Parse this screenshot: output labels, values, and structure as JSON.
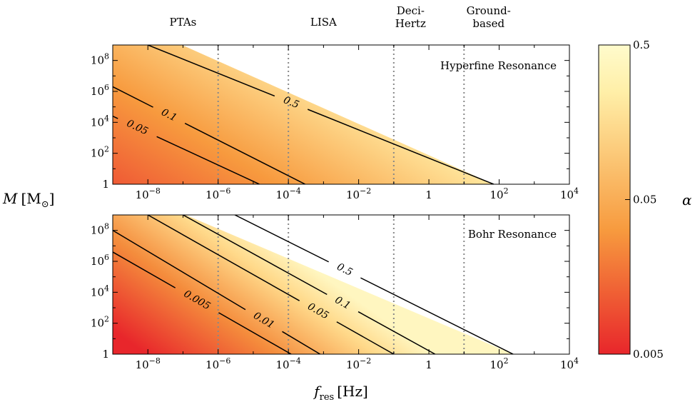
{
  "chart_data": {
    "type": "contour",
    "bands": [
      {
        "label": [
          "PTAs"
        ],
        "x": 1e-07
      },
      {
        "label": [
          "LISA"
        ],
        "x": 0.001
      },
      {
        "label": [
          "Deci-",
          "Hertz"
        ],
        "x": 0.3
      },
      {
        "label": [
          "Ground-",
          "based"
        ],
        "x": 50
      }
    ],
    "band_edges": [
      1e-06,
      0.0001,
      0.1,
      10
    ],
    "xlabel": "f",
    "xlabel_sub": "res",
    "xlabel_unit": "[Hz]",
    "ylabel": "M",
    "ylabel_unit": "[M",
    "ylabel_unit_sub": "⊙",
    "ylabel_unit_close": "]",
    "xlim": [
      1e-09,
      10000
    ],
    "ylim": [
      1,
      1000000000
    ],
    "x_ticks": [
      {
        "value": 1e-08,
        "base": "10",
        "exp": "−8"
      },
      {
        "value": 1e-06,
        "base": "10",
        "exp": "−6"
      },
      {
        "value": 0.0001,
        "base": "10",
        "exp": "−4"
      },
      {
        "value": 0.01,
        "base": "10",
        "exp": "−2"
      },
      {
        "value": 1,
        "base": "1",
        "exp": ""
      },
      {
        "value": 100,
        "base": "10",
        "exp": "2"
      },
      {
        "value": 10000,
        "base": "10",
        "exp": "4"
      }
    ],
    "y_ticks": [
      {
        "value": 1,
        "base": "1",
        "exp": ""
      },
      {
        "value": 100,
        "base": "10",
        "exp": "2"
      },
      {
        "value": 10000,
        "base": "10",
        "exp": "4"
      },
      {
        "value": 1000000,
        "base": "10",
        "exp": "6"
      },
      {
        "value": 100000000,
        "base": "10",
        "exp": "8"
      }
    ],
    "colorbar": {
      "label": "α",
      "scale": "log",
      "range": [
        0.005,
        0.5
      ],
      "ticks": [
        {
          "value": 0.5,
          "label": "0.5"
        },
        {
          "value": 0.05,
          "label": "0.05"
        },
        {
          "value": 0.005,
          "label": "0.005"
        }
      ],
      "colors": [
        "#e8262b",
        "#f79a3e",
        "#ffefa8",
        "#fffbcc"
      ]
    },
    "panels": [
      {
        "title": "Hyperfine Resonance",
        "fill_boundary": [
          [
            1e-09,
            100000000000
          ],
          [
            70,
            1
          ]
        ],
        "contours": [
          {
            "level": 0.5,
            "label": "0.5",
            "points": [
              [
                1e-08,
                1000000000
              ],
              [
                70,
                1
              ]
            ],
            "label_x": 0.00012
          },
          {
            "level": 0.1,
            "label": "0.1",
            "points": [
              [
                1e-09,
                2000000
              ],
              [
                0.0003,
                1
              ]
            ],
            "label_x": 4e-08
          },
          {
            "level": 0.05,
            "label": "0.05",
            "points": [
              [
                1e-09,
                25000
              ],
              [
                1.5e-05,
                1
              ]
            ],
            "label_x": 5e-09
          }
        ]
      },
      {
        "title": "Bohr Resonance",
        "fill_boundary": [
          [
            1e-09,
            100000000000
          ],
          [
            250,
            1
          ]
        ],
        "contours": [
          {
            "level": 0.5,
            "label": "0.5",
            "points": [
              [
                3e-06,
                1000000000
              ],
              [
                250,
                1
              ]
            ],
            "label_x": 0.004
          },
          {
            "level": 0.1,
            "label": "0.1",
            "points": [
              [
                1e-07,
                1000000000
              ],
              [
                1.5,
                1
              ]
            ],
            "label_x": 0.0035
          },
          {
            "level": 0.05,
            "label": "0.05",
            "points": [
              [
                1e-08,
                1000000000
              ],
              [
                0.1,
                1
              ]
            ],
            "label_x": 0.0007
          },
          {
            "level": 0.01,
            "label": "0.01",
            "points": [
              [
                1e-09,
                100000000
              ],
              [
                0.0008,
                1
              ]
            ],
            "label_x": 2e-05
          },
          {
            "level": 0.005,
            "label": "0.005",
            "points": [
              [
                1e-09,
                4000000
              ],
              [
                0.00012,
                1
              ]
            ],
            "label_x": 2.5e-07
          }
        ]
      }
    ]
  }
}
